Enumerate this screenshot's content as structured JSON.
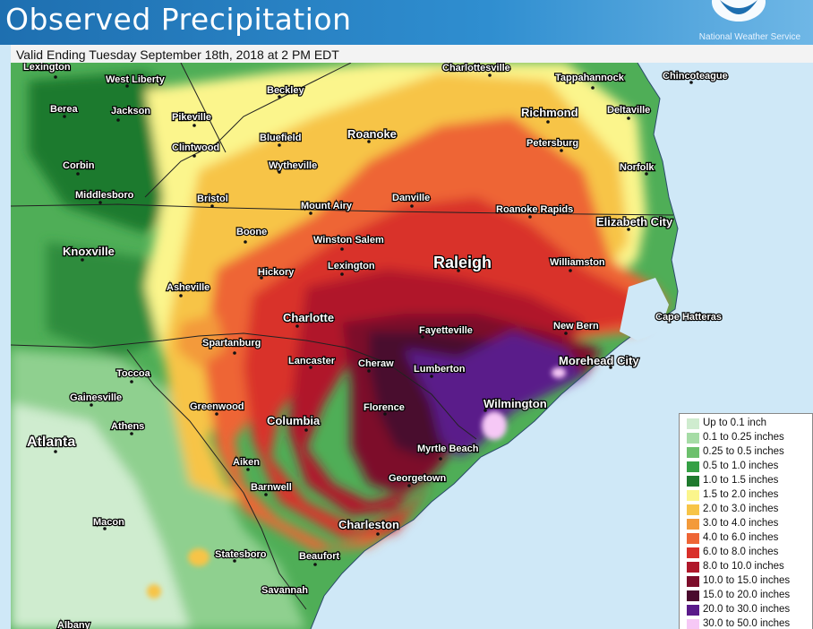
{
  "header": {
    "title": "Observed Precipitation",
    "agency": "National Weather Service"
  },
  "subtitle": "Valid Ending Tuesday September 18th, 2018 at 2 PM EDT",
  "legend": {
    "items": [
      {
        "label": "Up to 0.1 inch",
        "color": "#cfeccf"
      },
      {
        "label": "0.1 to 0.25 inches",
        "color": "#a6dca6"
      },
      {
        "label": "0.25 to 0.5 inches",
        "color": "#6cc06c"
      },
      {
        "label": "0.5 to 1.0 inches",
        "color": "#35a045"
      },
      {
        "label": "1.0 to 1.5 inches",
        "color": "#1f7a2e"
      },
      {
        "label": "1.5 to 2.0 inches",
        "color": "#fbf58c"
      },
      {
        "label": "2.0 to 3.0 inches",
        "color": "#f7c447"
      },
      {
        "label": "3.0 to 4.0 inches",
        "color": "#f39a3a"
      },
      {
        "label": "4.0 to 6.0 inches",
        "color": "#ee6535"
      },
      {
        "label": "6.0 to 8.0 inches",
        "color": "#d9302a"
      },
      {
        "label": "8.0 to 10.0 inches",
        "color": "#b0182a"
      },
      {
        "label": "10.0 to 15.0 inches",
        "color": "#7d0d2a"
      },
      {
        "label": "15.0 to 20.0 inches",
        "color": "#4a0a2e"
      },
      {
        "label": "20.0 to 30.0 inches",
        "color": "#5a1a8a"
      },
      {
        "label": "30.0 to 50.0 inches",
        "color": "#f6c8f6"
      }
    ]
  },
  "cities": [
    {
      "name": "Lexington"
    },
    {
      "name": "West Liberty"
    },
    {
      "name": "Beckley"
    },
    {
      "name": "Charlottesville"
    },
    {
      "name": "Tappahannock"
    },
    {
      "name": "Chincoteague"
    },
    {
      "name": "Berea"
    },
    {
      "name": "Jackson"
    },
    {
      "name": "Pikeville"
    },
    {
      "name": "Richmond"
    },
    {
      "name": "Deltaville"
    },
    {
      "name": "Bluefield"
    },
    {
      "name": "Roanoke"
    },
    {
      "name": "Clintwood"
    },
    {
      "name": "Petersburg"
    },
    {
      "name": "Corbin"
    },
    {
      "name": "Wytheville"
    },
    {
      "name": "Norfolk"
    },
    {
      "name": "Middlesboro"
    },
    {
      "name": "Bristol"
    },
    {
      "name": "Danville"
    },
    {
      "name": "Mount Airy"
    },
    {
      "name": "Roanoke Rapids"
    },
    {
      "name": "Elizabeth City"
    },
    {
      "name": "Knoxville"
    },
    {
      "name": "Boone"
    },
    {
      "name": "Winston Salem"
    },
    {
      "name": "Raleigh"
    },
    {
      "name": "Williamston"
    },
    {
      "name": "Hickory"
    },
    {
      "name": "Lexington"
    },
    {
      "name": "Asheville"
    },
    {
      "name": "Charlotte"
    },
    {
      "name": "Cape Hatteras"
    },
    {
      "name": "Fayetteville"
    },
    {
      "name": "New Bern"
    },
    {
      "name": "Spartanburg"
    },
    {
      "name": "Lancaster"
    },
    {
      "name": "Cheraw"
    },
    {
      "name": "Lumberton"
    },
    {
      "name": "Morehead City"
    },
    {
      "name": "Toccoa"
    },
    {
      "name": "Gainesville"
    },
    {
      "name": "Wilmington"
    },
    {
      "name": "Greenwood"
    },
    {
      "name": "Florence"
    },
    {
      "name": "Athens"
    },
    {
      "name": "Columbia"
    },
    {
      "name": "Atlanta"
    },
    {
      "name": "Myrtle Beach"
    },
    {
      "name": "Aiken"
    },
    {
      "name": "Georgetown"
    },
    {
      "name": "Barnwell"
    },
    {
      "name": "Charleston"
    },
    {
      "name": "Macon"
    },
    {
      "name": "Statesboro"
    },
    {
      "name": "Beaufort"
    },
    {
      "name": "Savannah"
    },
    {
      "name": "Albany"
    }
  ]
}
